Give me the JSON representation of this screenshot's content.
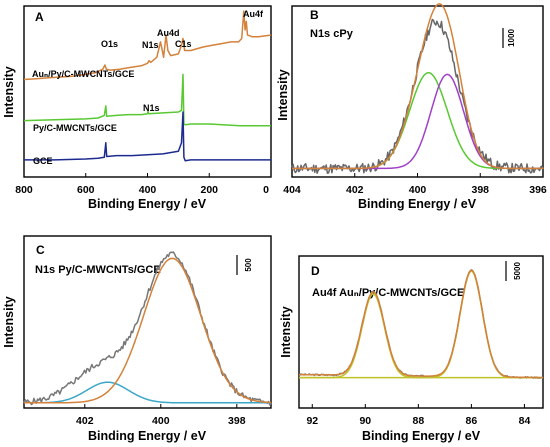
{
  "figure": {
    "ylabel": "Intensity"
  },
  "chart_data": [
    {
      "type": "line",
      "panel": "A",
      "xlabel": "Binding Energy / eV",
      "ylabel": "Intensity",
      "xlim": [
        800,
        0
      ],
      "xticks": [
        "800",
        "600",
        "400",
        "200",
        "0"
      ],
      "series": [
        {
          "name": "Auₙ/Py/C-MWCNTs/GCE",
          "color": "#d4813a",
          "points": [
            [
              800,
              0.57
            ],
            [
              760,
              0.575
            ],
            [
              720,
              0.58
            ],
            [
              680,
              0.585
            ],
            [
              640,
              0.59
            ],
            [
              600,
              0.6
            ],
            [
              570,
              0.61
            ],
            [
              545,
              0.63
            ],
            [
              538,
              0.655
            ],
            [
              533,
              0.63
            ],
            [
              520,
              0.625
            ],
            [
              490,
              0.63
            ],
            [
              460,
              0.64
            ],
            [
              420,
              0.65
            ],
            [
              400,
              0.665
            ],
            [
              395,
              0.68
            ],
            [
              390,
              0.67
            ],
            [
              370,
              0.7
            ],
            [
              358,
              0.79
            ],
            [
              352,
              0.74
            ],
            [
              348,
              0.7
            ],
            [
              340,
              0.83
            ],
            [
              334,
              0.74
            ],
            [
              325,
              0.71
            ],
            [
              300,
              0.72
            ],
            [
              290,
              0.77
            ],
            [
              285,
              0.81
            ],
            [
              280,
              0.74
            ],
            [
              260,
              0.74
            ],
            [
              220,
              0.76
            ],
            [
              190,
              0.77
            ],
            [
              160,
              0.78
            ],
            [
              130,
              0.79
            ],
            [
              105,
              0.79
            ],
            [
              95,
              0.81
            ],
            [
              88,
              0.97
            ],
            [
              84,
              0.86
            ],
            [
              80,
              0.91
            ],
            [
              76,
              0.83
            ],
            [
              60,
              0.82
            ],
            [
              40,
              0.82
            ],
            [
              20,
              0.825
            ],
            [
              0,
              0.83
            ]
          ]
        },
        {
          "name": "Py/C-MWCNTs/GCE",
          "color": "#58c932",
          "points": [
            [
              800,
              0.33
            ],
            [
              700,
              0.335
            ],
            [
              600,
              0.34
            ],
            [
              560,
              0.345
            ],
            [
              540,
              0.36
            ],
            [
              535,
              0.415
            ],
            [
              532,
              0.355
            ],
            [
              500,
              0.36
            ],
            [
              460,
              0.365
            ],
            [
              420,
              0.365
            ],
            [
              400,
              0.37
            ],
            [
              398,
              0.385
            ],
            [
              396,
              0.37
            ],
            [
              350,
              0.375
            ],
            [
              300,
              0.38
            ],
            [
              290,
              0.39
            ],
            [
              285,
              0.6
            ],
            [
              282,
              0.31
            ],
            [
              278,
              0.305
            ],
            [
              260,
              0.31
            ],
            [
              200,
              0.31
            ],
            [
              100,
              0.3
            ],
            [
              0,
              0.3
            ]
          ]
        },
        {
          "name": "GCE",
          "color": "#1d2b8f",
          "points": [
            [
              800,
              0.1
            ],
            [
              700,
              0.1
            ],
            [
              600,
              0.105
            ],
            [
              560,
              0.11
            ],
            [
              540,
              0.115
            ],
            [
              535,
              0.2
            ],
            [
              532,
              0.12
            ],
            [
              500,
              0.125
            ],
            [
              450,
              0.125
            ],
            [
              400,
              0.13
            ],
            [
              350,
              0.135
            ],
            [
              300,
              0.15
            ],
            [
              290,
              0.2
            ],
            [
              285,
              0.38
            ],
            [
              282,
              0.115
            ],
            [
              278,
              0.095
            ],
            [
              260,
              0.1
            ],
            [
              200,
              0.1
            ],
            [
              100,
              0.1
            ],
            [
              0,
              0.1
            ]
          ]
        }
      ],
      "annotations": [
        "O1s",
        "N1s",
        "Au4d",
        "C1s",
        "Au4f",
        "N1s"
      ]
    },
    {
      "type": "line",
      "panel": "B",
      "title": "N1s  cPy",
      "xlabel": "Binding Energy / eV",
      "ylabel": "Intensity",
      "xlim": [
        404,
        396
      ],
      "xticks": [
        404,
        402,
        400,
        398,
        396
      ],
      "scale_bar": "1000",
      "series": [
        {
          "color": "#666666",
          "kind": "raw",
          "center": 399.4,
          "sigma": 0.68,
          "amp": 0.86,
          "baseline": 0.05
        },
        {
          "color": "#d4813a",
          "kind": "envelope"
        },
        {
          "color": "#58c932",
          "kind": "component",
          "center": 399.65,
          "sigma": 0.6,
          "amp": 0.56,
          "baseline": 0.05
        },
        {
          "color": "#a040c8",
          "kind": "component",
          "center": 399.05,
          "sigma": 0.52,
          "amp": 0.55,
          "baseline": 0.05
        }
      ]
    },
    {
      "type": "line",
      "panel": "C",
      "title": "N1s Py/C-MWCNTs/GCE",
      "xlabel": "Binding Energy / eV",
      "ylabel": "Intensity",
      "xlim": [
        403.6,
        397.1
      ],
      "xticks": [
        402,
        400,
        398
      ],
      "scale_bar": "500",
      "series": [
        {
          "color": "#777777",
          "kind": "raw",
          "center": 399.7,
          "sigma": 0.75,
          "amp": 0.86,
          "baseline": 0.03
        },
        {
          "color": "#d4813a",
          "kind": "component",
          "center": 399.7,
          "sigma": 0.75,
          "amp": 0.84,
          "baseline": 0.03
        },
        {
          "color": "#3aa7c9",
          "kind": "component",
          "center": 401.4,
          "sigma": 0.55,
          "amp": 0.12,
          "baseline": 0.03
        }
      ]
    },
    {
      "type": "line",
      "panel": "D",
      "title": "Au4f Auₙ/Py/C-MWCNTs/GCE",
      "xlabel": "Binding Energy / eV",
      "ylabel": "Intensity",
      "xlim": [
        92.5,
        83.3
      ],
      "xticks": [
        92,
        90,
        88,
        86,
        84
      ],
      "scale_bar": "5000",
      "series": [
        {
          "color": "#777777",
          "kind": "raw"
        },
        {
          "color": "#d4813a",
          "kind": "envelope"
        },
        {
          "color": "#c0c22a",
          "kind": "component",
          "center": 89.7,
          "sigma": 0.42,
          "amp": 0.55
        },
        {
          "color": "#c0c22a",
          "kind": "component",
          "center": 86.0,
          "sigma": 0.42,
          "amp": 0.7
        }
      ]
    }
  ]
}
